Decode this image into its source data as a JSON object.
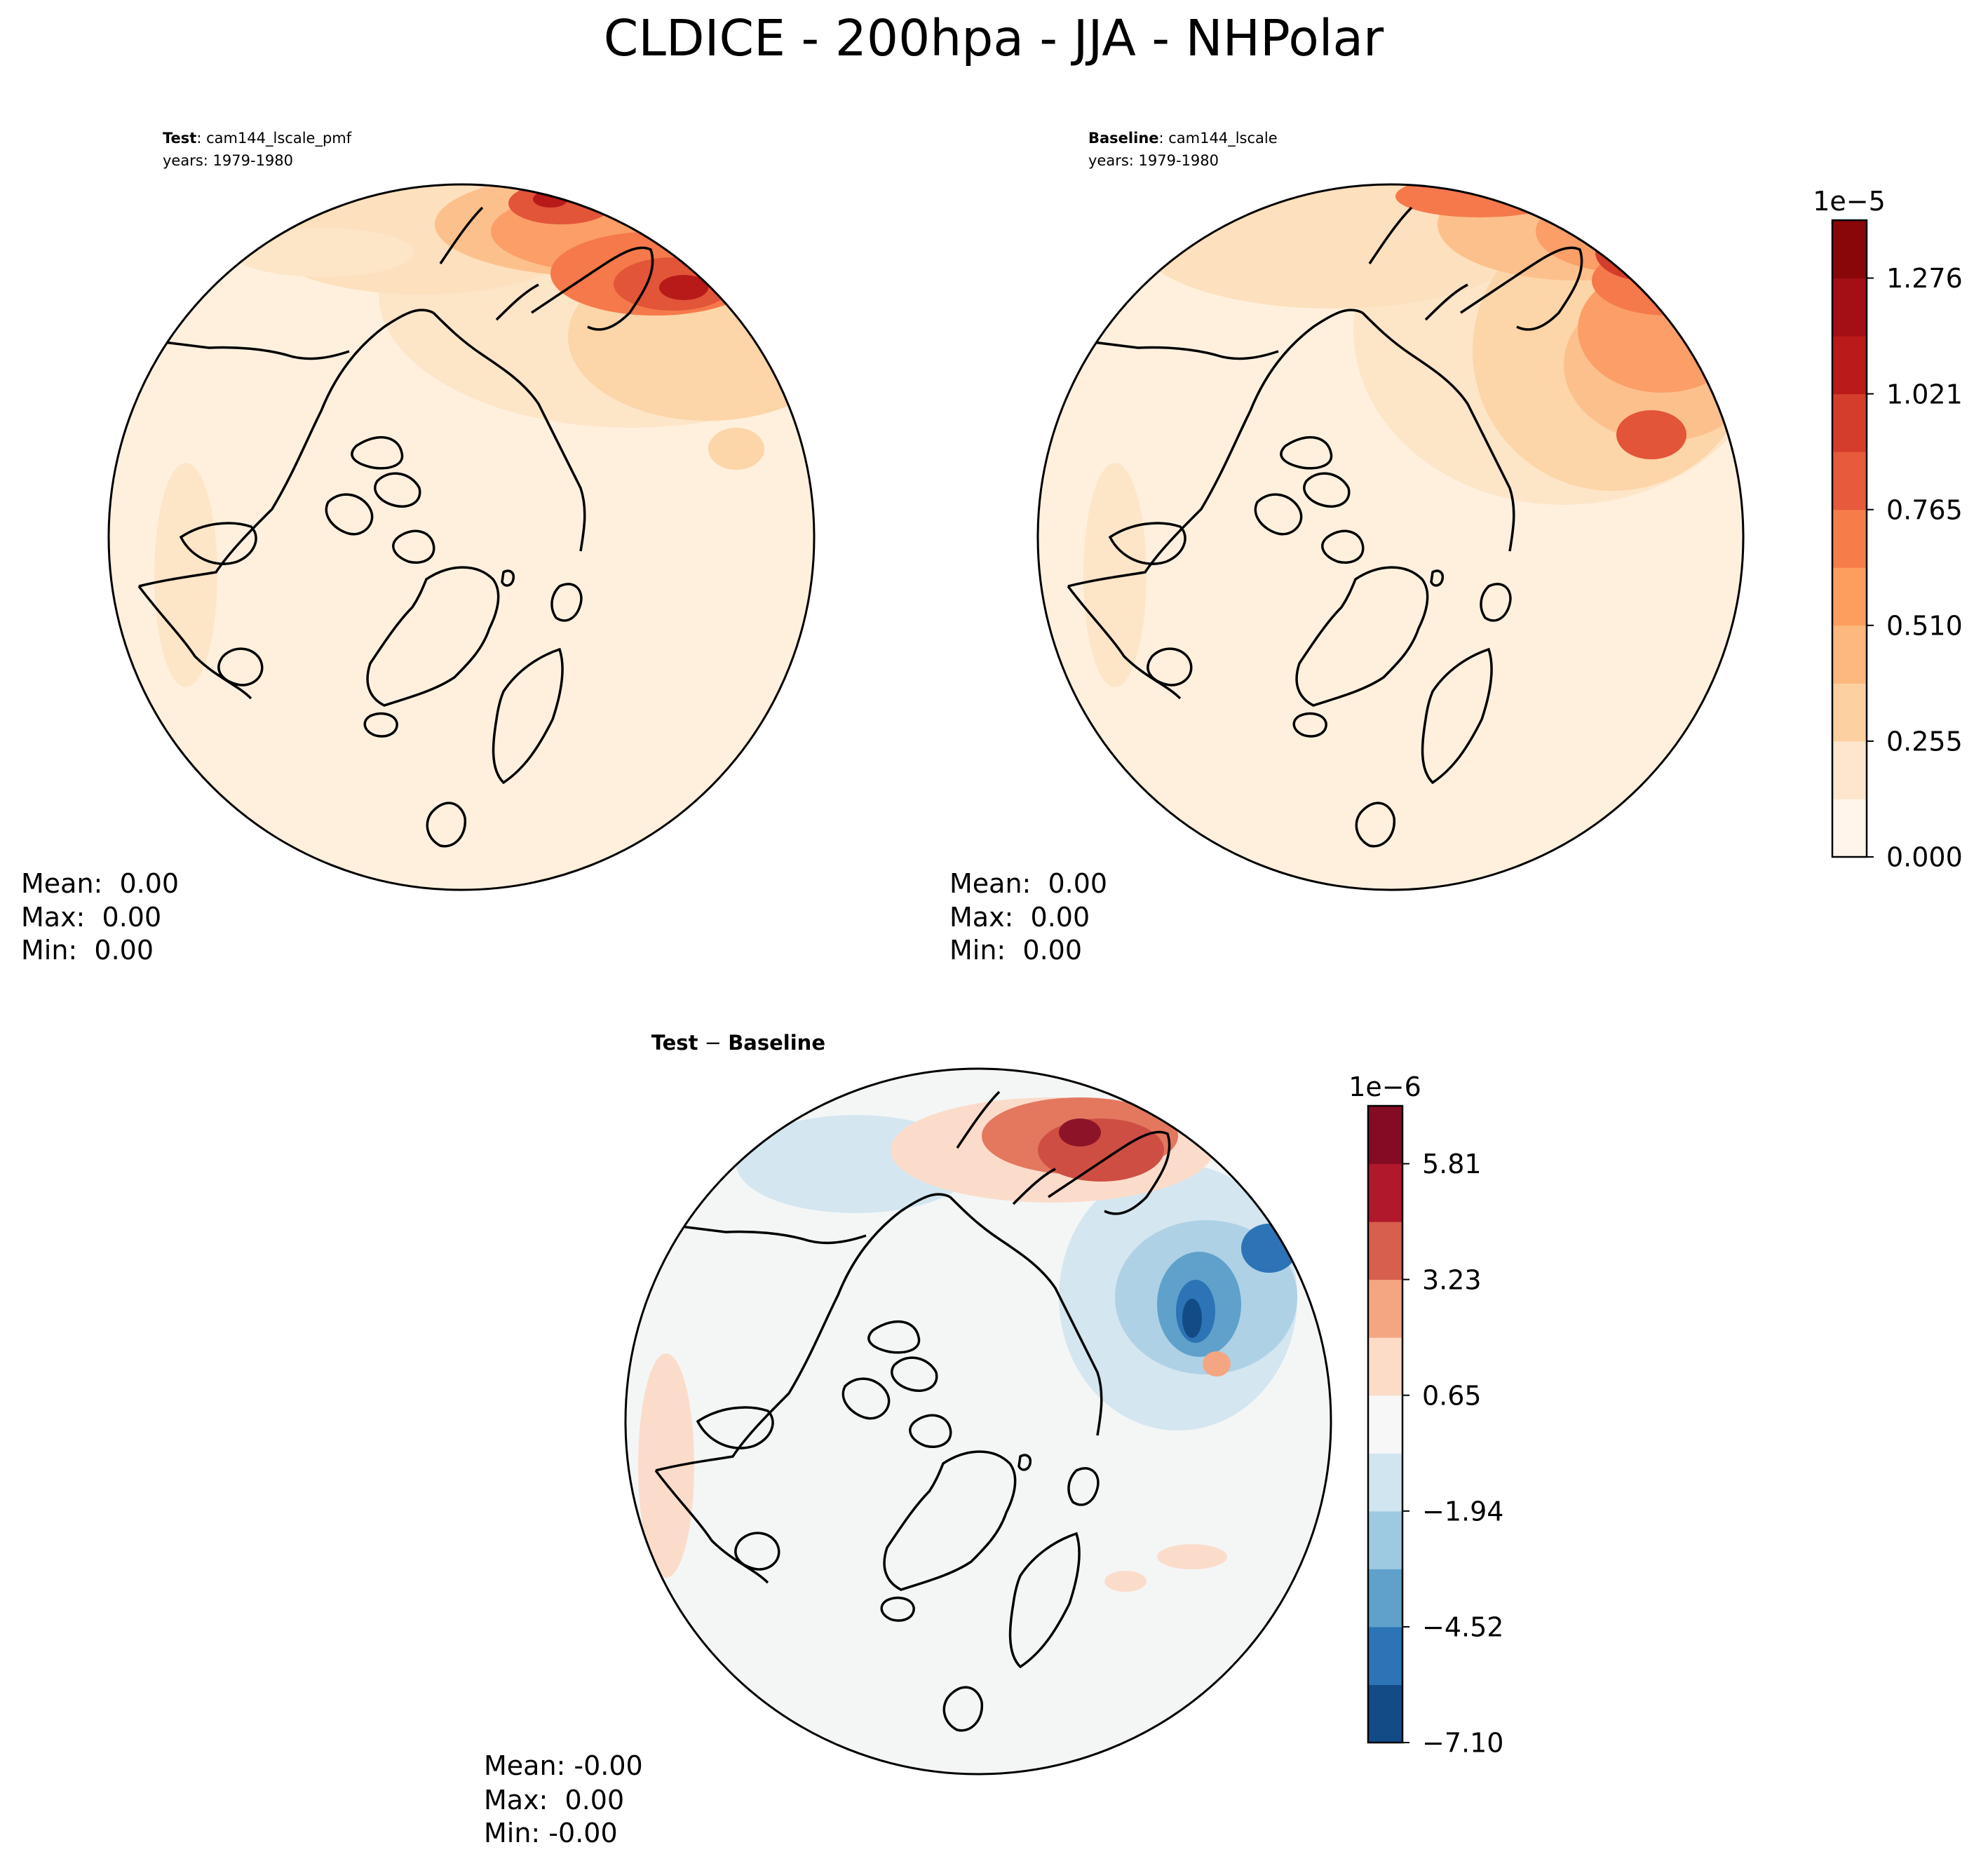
{
  "figure": {
    "title": "CLDICE - 200hpa - JJA - NHPolar"
  },
  "panels": [
    {
      "id": "test",
      "label_bold": "Test",
      "label_rest": ": cam144_lscale_pmf",
      "years": "years: 1979-1980",
      "stats": [
        "Mean:  0.00",
        "Max:  0.00",
        "Min:  0.00"
      ]
    },
    {
      "id": "baseline",
      "label_bold": "Baseline",
      "label_rest": ": cam144_lscale",
      "years": "years: 1979-1980",
      "stats": [
        "Mean:  0.00",
        "Max:  0.00",
        "Min:  0.00"
      ]
    },
    {
      "id": "diff",
      "label_bold": "Test",
      "label_mid": " − ",
      "label_bold2": "Baseline",
      "stats": [
        "Mean: -0.00",
        "Max:  0.00",
        "Min: -0.00"
      ]
    }
  ],
  "colorbars": {
    "main": {
      "exponent": "1e−5",
      "ticks": [
        "0.000",
        "0.255",
        "0.510",
        "0.765",
        "1.021",
        "1.276"
      ],
      "colors": [
        "#fff5eb",
        "#fee6ce",
        "#fdd0a2",
        "#fdb97d",
        "#fd9e5f",
        "#f67d4a",
        "#e75a3b",
        "#d43d2c",
        "#bb1a1b",
        "#a30f15",
        "#8a0709"
      ]
    },
    "diff": {
      "exponent": "1e−6",
      "ticks": [
        "−7.10",
        "−4.52",
        "−1.94",
        "0.65",
        "3.23",
        "5.81"
      ],
      "colors": [
        "#134b86",
        "#2c74b5",
        "#5fa1cb",
        "#9ecae1",
        "#d1e5f0",
        "#f7f7f7",
        "#fcdbc7",
        "#f4a582",
        "#d6604d",
        "#b2182b",
        "#830b24"
      ]
    }
  },
  "map_colors": {
    "main_background": "#fff0de",
    "diff_background": "#f4f6f6",
    "coastline": "#000000"
  }
}
